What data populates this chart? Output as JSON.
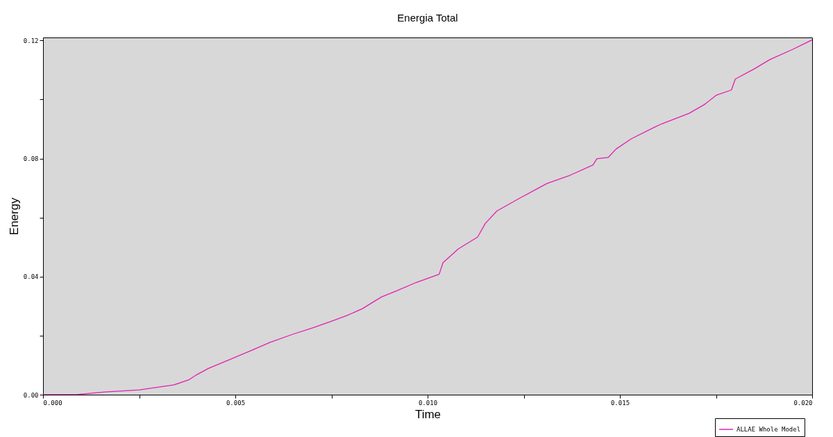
{
  "chart_data": {
    "type": "line",
    "title": "Energia Total",
    "xlabel": "Time",
    "ylabel": "Energy",
    "x": [
      0,
      0.00087,
      0.0016,
      0.0025,
      0.0034,
      0.0038,
      0.004,
      0.0043,
      0.0048,
      0.0054,
      0.0059,
      0.0065,
      0.007,
      0.0075,
      0.0079,
      0.0083,
      0.0088,
      0.0092,
      0.0097,
      0.0103,
      0.0104,
      0.0108,
      0.0113,
      0.0115,
      0.0118,
      0.0124,
      0.0131,
      0.0137,
      0.0143,
      0.0144,
      0.0147,
      0.0149,
      0.0153,
      0.0159,
      0.0161,
      0.0168,
      0.0172,
      0.0175,
      0.0179,
      0.018,
      0.0185,
      0.0189,
      0.0195,
      0.02
    ],
    "series": [
      {
        "name": "ALLAE Whole Model",
        "color": "#e020b0",
        "values": [
          0,
          0,
          0.0009,
          0.0016,
          0.0033,
          0.0051,
          0.0068,
          0.0089,
          0.0116,
          0.0149,
          0.0177,
          0.0205,
          0.0226,
          0.0249,
          0.0268,
          0.0291,
          0.0331,
          0.0352,
          0.038,
          0.0408,
          0.0447,
          0.0494,
          0.0534,
          0.058,
          0.0622,
          0.0666,
          0.0715,
          0.0743,
          0.0778,
          0.0799,
          0.0804,
          0.0832,
          0.0867,
          0.0906,
          0.0918,
          0.0953,
          0.0983,
          0.1014,
          0.1032,
          0.1069,
          0.1104,
          0.1135,
          0.117,
          0.1202
        ]
      }
    ],
    "xlim": [
      0,
      0.02
    ],
    "xticks": [
      {
        "value": 0,
        "label": "0.000"
      },
      {
        "value": 0.0025,
        "label": null
      },
      {
        "value": 0.005,
        "label": "0.005"
      },
      {
        "value": 0.0075,
        "label": null
      },
      {
        "value": 0.01,
        "label": "0.010"
      },
      {
        "value": 0.0125,
        "label": null
      },
      {
        "value": 0.015,
        "label": "0.015"
      },
      {
        "value": 0.0175,
        "label": null
      },
      {
        "value": 0.02,
        "label": "0.020"
      }
    ],
    "ylim": [
      0,
      0.121
    ],
    "yticks": [
      {
        "value": 0,
        "label": "0.00"
      },
      {
        "value": 0.02,
        "label": null
      },
      {
        "value": 0.04,
        "label": "0.04"
      },
      {
        "value": 0.06,
        "label": null
      },
      {
        "value": 0.08,
        "label": "0.08"
      },
      {
        "value": 0.1,
        "label": null
      },
      {
        "value": 0.12,
        "label": "0.12"
      }
    ],
    "grid": false,
    "legend": "bottom right"
  }
}
